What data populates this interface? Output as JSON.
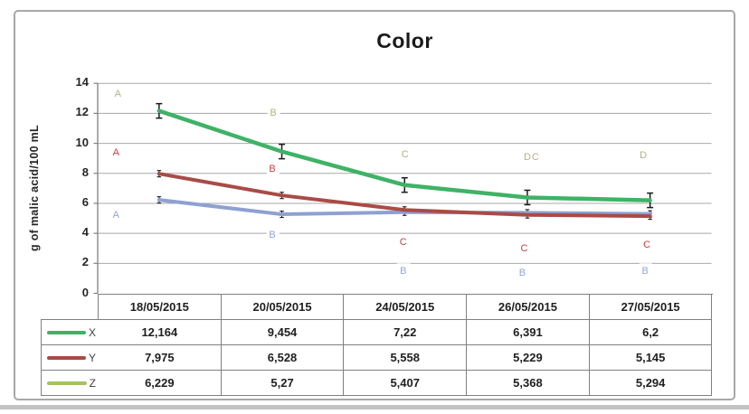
{
  "title": "Color",
  "chart_data": {
    "type": "line",
    "title": "Color",
    "xlabel": "",
    "ylabel": "g of malic acid/100 mL",
    "ylim": [
      0,
      14
    ],
    "y_tick_labels": [
      "14",
      "12",
      "10",
      "8",
      "6",
      "4",
      "2",
      "0"
    ],
    "grid": true,
    "legend_position": "table rows below chart with line keys",
    "categories": [
      "18/05/2015",
      "20/05/2015",
      "24/05/2015",
      "26/05/2015",
      "27/05/2015"
    ],
    "series": [
      {
        "name": "X",
        "values": [
          12.164,
          9.454,
          7.22,
          6.391,
          6.2
        ],
        "display_values": [
          "12,164",
          "9,454",
          "7,22",
          "6,391",
          "6,2"
        ],
        "line_color": "#3fb266",
        "legend_color": "#3fb266",
        "error_bars": "large",
        "annotations": [
          "A",
          "B",
          "C",
          "DC",
          "D"
        ],
        "annotation_color": "#b3b382"
      },
      {
        "name": "Y",
        "values": [
          7.975,
          6.528,
          5.558,
          5.229,
          5.145
        ],
        "display_values": [
          "7,975",
          "6,528",
          "5,558",
          "5,229",
          "5,145"
        ],
        "line_color": "#a94b46",
        "legend_color": "#a94b46",
        "error_bars": "small",
        "annotations": [
          "A",
          "B",
          "C",
          "C",
          "C"
        ],
        "annotation_color": "#c4403c"
      },
      {
        "name": "Z",
        "values": [
          6.229,
          5.27,
          5.407,
          5.368,
          5.294
        ],
        "display_values": [
          "6,229",
          "5,27",
          "5,407",
          "5,368",
          "5,294"
        ],
        "line_color": "#8fa0d1",
        "legend_color": "#a4c263",
        "error_bars": "small",
        "annotations": [
          "A",
          "B",
          "B",
          "B",
          "B"
        ],
        "annotation_color": "#8fa6d8"
      }
    ]
  },
  "colors": {
    "grid": "#a8a8a8",
    "axis": "#808080",
    "table_border": "#808080",
    "text": "#1f1f1f",
    "frame_border": "#a8a8a8",
    "error_bar": "#1a1a1a",
    "bottom_strip": "#c3c3c3",
    "legend_label": "#404040"
  }
}
